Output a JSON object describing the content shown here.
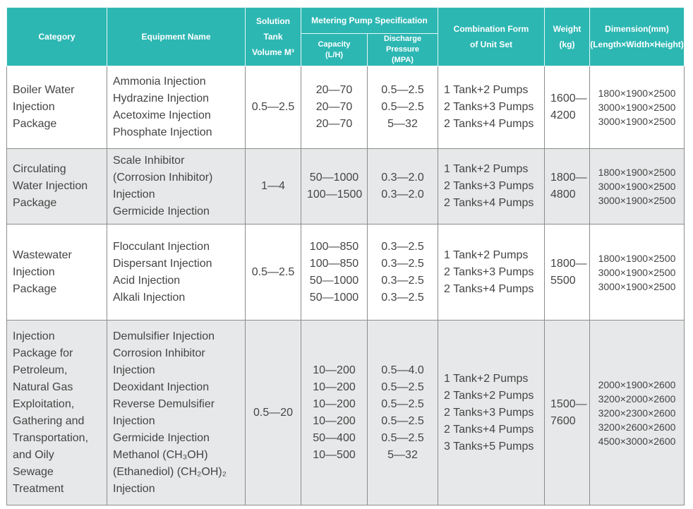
{
  "header": {
    "category": "Category",
    "equipment": "Equipment Name",
    "solution_tank": [
      "Solution Tank",
      "Volume M³"
    ],
    "metering_pump": "Metering Pump Specification",
    "capacity": [
      "Capacity",
      "(L/H)"
    ],
    "discharge": [
      "Discharge Pressure",
      "(MPA)"
    ],
    "combination": [
      "Combination Form",
      "of Unit Set"
    ],
    "weight": [
      "Weight",
      "(kg)"
    ],
    "dimension": [
      "Dimension(mm)",
      "(Length×Width×Height)"
    ]
  },
  "rows": [
    {
      "category": [
        "Boiler Water",
        "Injection",
        "Package"
      ],
      "equipment": [
        "Ammonia Injection",
        "Hydrazine Injection",
        "Acetoxime Injection",
        "Phosphate Injection"
      ],
      "volume": "0.5—2.5",
      "capacity": [
        "20—70",
        "20—70",
        "20—70"
      ],
      "pressure": [
        "0.5—2.5",
        "0.5—2.5",
        "5—32"
      ],
      "combination": [
        "1 Tank+2 Pumps",
        "2 Tanks+3 Pumps",
        "2 Tanks+4 Pumps"
      ],
      "weight": [
        "1600—",
        "4200"
      ],
      "dimension": [
        "1800×1900×2500",
        "3000×1900×2500",
        "3000×1900×2500"
      ]
    },
    {
      "category": [
        "Circulating",
        "Water Injection",
        "Package"
      ],
      "equipment": [
        "Scale Inhibitor",
        "(Corrosion Inhibitor)",
        "Injection",
        "Germicide Injection"
      ],
      "volume": "1—4",
      "capacity": [
        "50—1000",
        "100—1500"
      ],
      "pressure": [
        "0.3—2.0",
        "0.3—2.0"
      ],
      "combination": [
        "1 Tank+2 Pumps",
        "2 Tanks+3 Pumps",
        "2 Tanks+4 Pumps"
      ],
      "weight": [
        "1800—",
        "4800"
      ],
      "dimension": [
        "1800×1900×2500",
        "3000×1900×2500",
        "3000×1900×2500"
      ]
    },
    {
      "category": [
        "Wastewater",
        "Injection",
        "Package"
      ],
      "equipment": [
        "Flocculant Injection",
        "Dispersant Injection",
        "Acid Injection",
        "Alkali Injection"
      ],
      "volume": "0.5—2.5",
      "capacity": [
        "100—850",
        "100—850",
        "50—1000",
        "50—1000"
      ],
      "pressure": [
        "0.3—2.5",
        "0.3—2.5",
        "0.3—2.5",
        "0.3—2.5"
      ],
      "combination": [
        "1 Tank+2 Pumps",
        "2 Tanks+3 Pumps",
        "2 Tanks+4 Pumps"
      ],
      "weight": [
        "1800—",
        "5500"
      ],
      "dimension": [
        "1800×1900×2500",
        "3000×1900×2500",
        "3000×1900×2500"
      ]
    },
    {
      "category": [
        "Injection",
        "Package for",
        "Petroleum,",
        "Natural Gas",
        "Exploitation,",
        "Gathering and",
        "Transportation,",
        "and Oily",
        "Sewage",
        "Treatment"
      ],
      "equipment": [
        "Demulsifier Injection",
        "Corrosion Inhibitor",
        "Injection",
        "Deoxidant Injection",
        "Reverse Demulsifier",
        "Injection",
        "Germicide Injection",
        "Methanol (CH₃OH)",
        "(Ethanediol) (CH₂OH)₂",
        "Injection"
      ],
      "volume": "0.5—20",
      "capacity": [
        "10—200",
        "10—200",
        "10—200",
        "10—200",
        "50—400",
        "10—500"
      ],
      "pressure": [
        "0.5—4.0",
        "0.5—2.5",
        "0.5—2.5",
        "0.5—2.5",
        "0.5—2.5",
        "5—32"
      ],
      "combination": [
        "1 Tank+2 Pumps",
        "2 Tanks+2 Pumps",
        "2 Tanks+3 Pumps",
        "2 Tanks+4 Pumps",
        "3 Tanks+5 Pumps"
      ],
      "weight": [
        "1500—",
        "7600"
      ],
      "dimension": [
        "2000×1900×2600",
        "3200×2000×2600",
        "3200×2300×2600",
        "3200×2600×2600",
        "4500×3000×2600"
      ]
    }
  ]
}
